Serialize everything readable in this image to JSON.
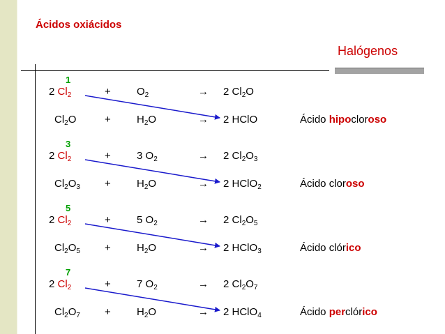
{
  "title": "Ácidos oxiácidos",
  "subtitle": "Halógenos",
  "colors": {
    "accent": "#cc0000",
    "oxidation": "#00a000",
    "arrow": "#1a1acc",
    "sidebar": "#e4e6c4"
  },
  "groups": [
    {
      "ox": "1",
      "r1": {
        "c": "2",
        "el": "Cl",
        "es": "2",
        "plus": "+",
        "o": "O",
        "os": "2",
        "arrow": "→",
        "p": "2 Cl",
        "ps": "2",
        "p2": "O",
        "p2s": ""
      },
      "r2": {
        "a": "Cl",
        "as": "2",
        "a2": "O",
        "a2s": "",
        "plus": "+",
        "b": "H",
        "bs": "2",
        "b2": "O",
        "arrow": "→",
        "p": "2 HClO",
        "ps": ""
      },
      "name": {
        "p1": "Ácido ",
        "p2": "hipo",
        "p3": "clor",
        "p4": "oso"
      }
    },
    {
      "ox": "3",
      "r1": {
        "c": "2",
        "el": "Cl",
        "es": "2",
        "plus": "+",
        "o": "3 O",
        "os": "2",
        "arrow": "→",
        "p": "2 Cl",
        "ps": "2",
        "p2": "O",
        "p2s": "3"
      },
      "r2": {
        "a": "Cl",
        "as": "2",
        "a2": "O",
        "a2s": "3",
        "plus": "+",
        "b": "H",
        "bs": "2",
        "b2": "O",
        "arrow": "→",
        "p": "2 HClO",
        "ps": "2"
      },
      "name": {
        "p1": "Ácido ",
        "p2": "",
        "p3": "clor",
        "p4": "oso"
      }
    },
    {
      "ox": "5",
      "r1": {
        "c": "2",
        "el": "Cl",
        "es": "2",
        "plus": "+",
        "o": "5 O",
        "os": "2",
        "arrow": "→",
        "p": "2 Cl",
        "ps": "2",
        "p2": "O",
        "p2s": "5"
      },
      "r2": {
        "a": "Cl",
        "as": "2",
        "a2": "O",
        "a2s": "5",
        "plus": "+",
        "b": "H",
        "bs": "2",
        "b2": "O",
        "arrow": "→",
        "p": "2 HClO",
        "ps": "3"
      },
      "name": {
        "p1": "Ácido ",
        "p2": "",
        "p3": "clór",
        "p4": "ico"
      }
    },
    {
      "ox": "7",
      "r1": {
        "c": "2",
        "el": "Cl",
        "es": "2",
        "plus": "+",
        "o": "7 O",
        "os": "2",
        "arrow": "→",
        "p": "2 Cl",
        "ps": "2",
        "p2": "O",
        "p2s": "7"
      },
      "r2": {
        "a": "Cl",
        "as": "2",
        "a2": "O",
        "a2s": "7",
        "plus": "+",
        "b": "H",
        "bs": "2",
        "b2": "O",
        "arrow": "→",
        "p": "2 HClO",
        "ps": "4"
      },
      "name": {
        "p1": "Ácido ",
        "p2": "per",
        "p3": "clór",
        "p4": "ico"
      }
    }
  ]
}
